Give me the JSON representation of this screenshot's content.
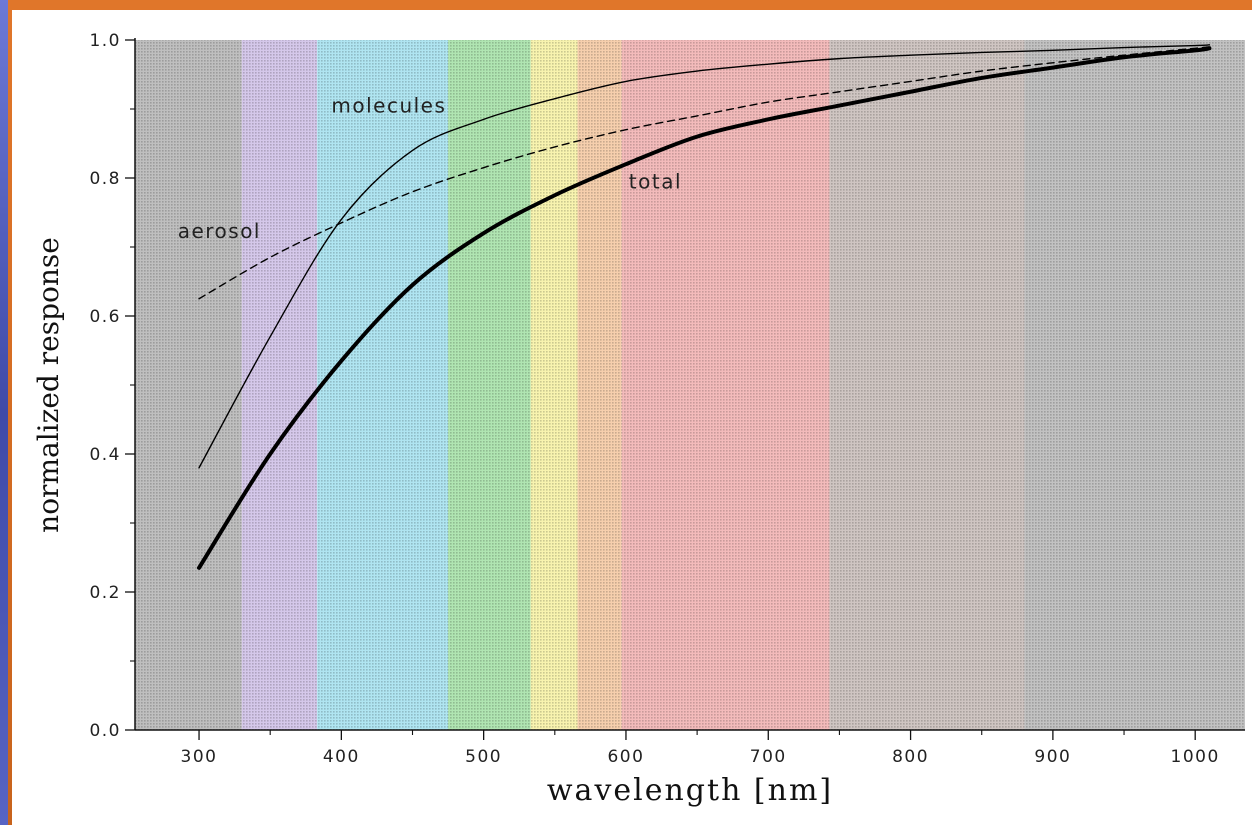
{
  "chart_data": {
    "type": "line",
    "title": "",
    "xlabel": "wavelength [nm]",
    "ylabel": "normalized response",
    "xlim": [
      255,
      1035
    ],
    "ylim": [
      0.0,
      1.0
    ],
    "x_ticks": [
      300,
      400,
      500,
      600,
      700,
      800,
      900,
      1000
    ],
    "x_tick_labels": [
      "300",
      "400",
      "500",
      "600",
      "700",
      "800",
      "900",
      "1000"
    ],
    "y_ticks": [
      0.0,
      0.2,
      0.4,
      0.6,
      0.8,
      1.0
    ],
    "y_tick_labels": [
      "0.0",
      "0.2",
      "0.4",
      "0.6",
      "0.8",
      "1.0"
    ],
    "grid": false,
    "background_bands": [
      {
        "from": 255,
        "to": 330,
        "color": "#8a8a8a"
      },
      {
        "from": 330,
        "to": 383,
        "color": "#b39ad8"
      },
      {
        "from": 383,
        "to": 475,
        "color": "#6fd0e6"
      },
      {
        "from": 475,
        "to": 533,
        "color": "#6fcf72"
      },
      {
        "from": 533,
        "to": 566,
        "color": "#f2ea6e"
      },
      {
        "from": 566,
        "to": 597,
        "color": "#eea86a"
      },
      {
        "from": 597,
        "to": 743,
        "color": "#ea8484"
      },
      {
        "from": 743,
        "to": 880,
        "color": "#a7958f"
      },
      {
        "from": 880,
        "to": 1035,
        "color": "#8f8f8f"
      }
    ],
    "series": [
      {
        "name": "molecules",
        "style": "thin-solid",
        "x": [
          300,
          350,
          400,
          450,
          500,
          550,
          600,
          650,
          700,
          750,
          800,
          850,
          900,
          950,
          1000,
          1010
        ],
        "y": [
          0.38,
          0.57,
          0.74,
          0.84,
          0.885,
          0.915,
          0.94,
          0.955,
          0.965,
          0.973,
          0.978,
          0.982,
          0.985,
          0.989,
          0.992,
          0.993
        ]
      },
      {
        "name": "aerosol",
        "style": "dashed",
        "x": [
          300,
          350,
          400,
          450,
          500,
          550,
          600,
          650,
          700,
          750,
          800,
          850,
          900,
          950,
          1000,
          1010
        ],
        "y": [
          0.625,
          0.685,
          0.735,
          0.78,
          0.815,
          0.845,
          0.87,
          0.89,
          0.91,
          0.925,
          0.94,
          0.955,
          0.967,
          0.978,
          0.988,
          0.99
        ]
      },
      {
        "name": "total",
        "style": "thick-solid",
        "x": [
          300,
          350,
          400,
          450,
          500,
          550,
          600,
          650,
          700,
          750,
          800,
          850,
          900,
          950,
          1000,
          1010
        ],
        "y": [
          0.235,
          0.4,
          0.535,
          0.645,
          0.72,
          0.775,
          0.82,
          0.86,
          0.885,
          0.905,
          0.925,
          0.945,
          0.96,
          0.975,
          0.985,
          0.988
        ]
      }
    ],
    "annotations": [
      {
        "text": "molecules",
        "x": 393,
        "y": 0.895
      },
      {
        "text": "aerosol",
        "x": 285,
        "y": 0.713
      },
      {
        "text": "total",
        "x": 602,
        "y": 0.785
      }
    ]
  }
}
